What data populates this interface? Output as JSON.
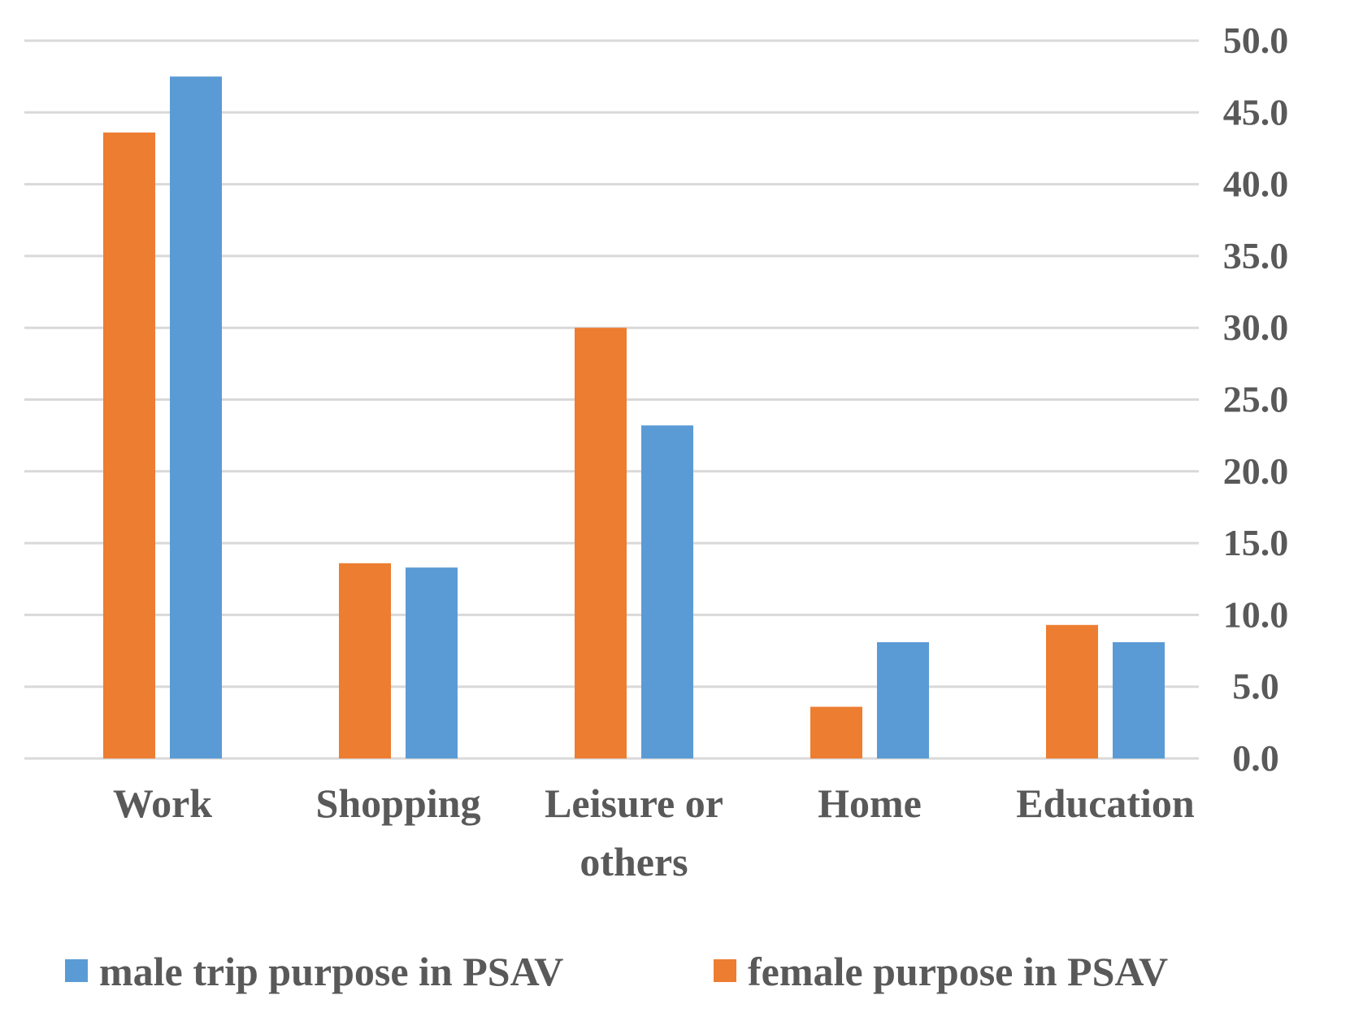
{
  "chart_data": {
    "type": "bar",
    "categories": [
      "Work",
      "Shopping",
      "Leisure or others",
      "Home",
      "Education"
    ],
    "category_lines": [
      [
        "Work"
      ],
      [
        "Shopping"
      ],
      [
        "Leisure or",
        "others"
      ],
      [
        "Home"
      ],
      [
        "Education"
      ]
    ],
    "series": [
      {
        "name": "female purpose in PSAV",
        "color": "#ED7D31",
        "values": [
          43.6,
          13.6,
          30.0,
          3.6,
          9.3
        ]
      },
      {
        "name": "male trip purpose in PSAV",
        "color": "#5B9BD5",
        "values": [
          47.5,
          13.3,
          23.2,
          8.1,
          8.1
        ]
      }
    ],
    "ylim": [
      0,
      50
    ],
    "yticks": [
      "0.0",
      "5.0",
      "10.0",
      "15.0",
      "20.0",
      "25.0",
      "30.0",
      "35.0",
      "40.0",
      "45.0",
      "50.0"
    ],
    "y_axis_side": "right",
    "grid": true,
    "gridline_color": "#D9D9D9",
    "legend": {
      "position": "bottom",
      "entries": [
        {
          "label": "male trip purpose in PSAV",
          "color": "#5B9BD5"
        },
        {
          "label": "female purpose in PSAV",
          "color": "#ED7D31"
        }
      ]
    }
  }
}
